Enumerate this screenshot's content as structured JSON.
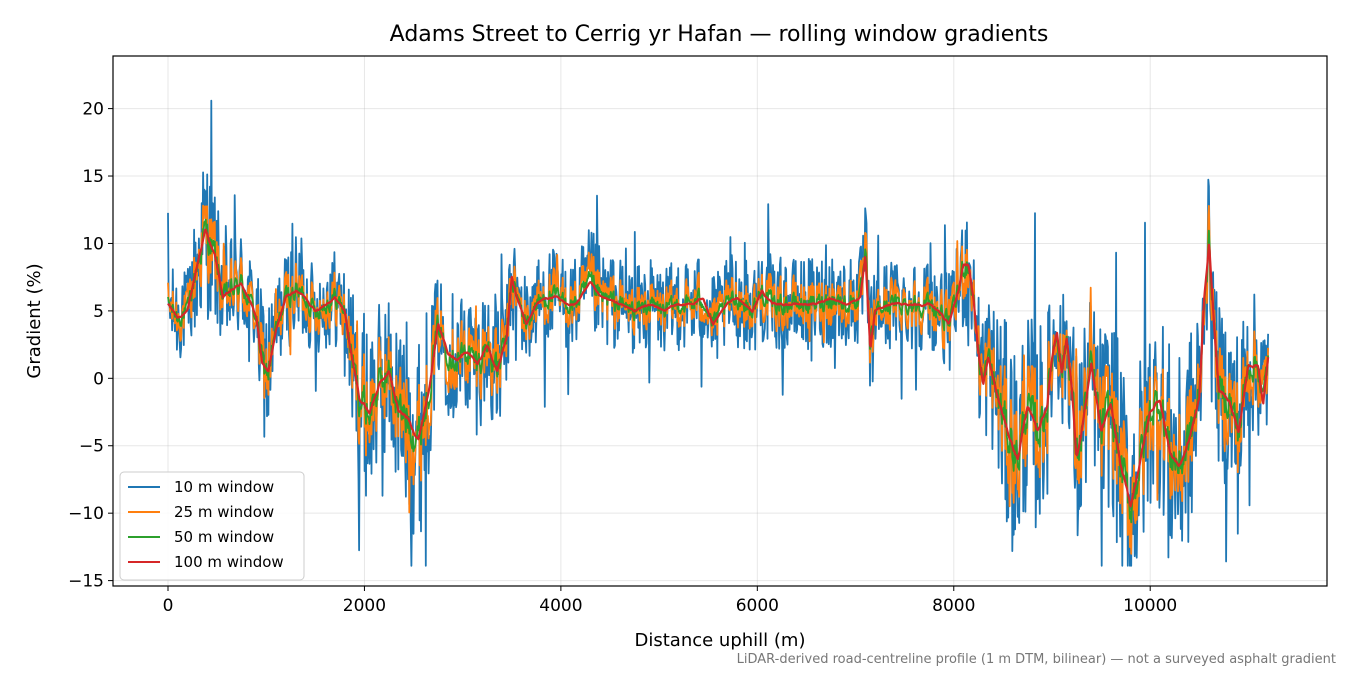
{
  "chart_data": {
    "type": "line",
    "title": "Adams Street to Cerrig yr Hafan — rolling window gradients",
    "xlabel": "Distance uphill (m)",
    "ylabel": "Gradient (%)",
    "xlim": [
      -560,
      11800
    ],
    "ylim": [
      -15.4,
      23.9
    ],
    "xticks": [
      0,
      2000,
      4000,
      6000,
      8000,
      10000
    ],
    "xtick_labels": [
      "0",
      "2000",
      "4000",
      "6000",
      "8000",
      "10000"
    ],
    "yticks": [
      -15,
      -10,
      -5,
      0,
      5,
      10,
      15,
      20
    ],
    "ytick_labels": [
      "−15",
      "−10",
      "−5",
      "0",
      "5",
      "10",
      "15",
      "20"
    ],
    "grid": true,
    "legend_position": "lower-left",
    "x_max_m": 11200,
    "profile_m": [
      [
        0,
        5.5
      ],
      [
        100,
        4.5
      ],
      [
        200,
        5.0
      ],
      [
        300,
        8.5
      ],
      [
        380,
        11.0
      ],
      [
        480,
        9.0
      ],
      [
        560,
        6.0
      ],
      [
        650,
        6.5
      ],
      [
        740,
        7.0
      ],
      [
        820,
        6.0
      ],
      [
        900,
        4.5
      ],
      [
        960,
        1.0
      ],
      [
        1020,
        0.5
      ],
      [
        1100,
        3.5
      ],
      [
        1200,
        6.0
      ],
      [
        1300,
        6.5
      ],
      [
        1400,
        6.0
      ],
      [
        1500,
        5.0
      ],
      [
        1600,
        5.5
      ],
      [
        1700,
        6.0
      ],
      [
        1800,
        5.0
      ],
      [
        1850,
        2.5
      ],
      [
        1950,
        -1.5
      ],
      [
        2050,
        -2.5
      ],
      [
        2150,
        -0.5
      ],
      [
        2250,
        0.5
      ],
      [
        2350,
        -2.5
      ],
      [
        2450,
        -3.0
      ],
      [
        2550,
        -4.5
      ],
      [
        2650,
        -1.0
      ],
      [
        2750,
        4.0
      ],
      [
        2850,
        2.0
      ],
      [
        2950,
        1.5
      ],
      [
        3050,
        2.0
      ],
      [
        3150,
        1.0
      ],
      [
        3250,
        2.5
      ],
      [
        3350,
        0.5
      ],
      [
        3450,
        3.0
      ],
      [
        3500,
        7.5
      ],
      [
        3550,
        6.0
      ],
      [
        3650,
        4.0
      ],
      [
        3750,
        5.5
      ],
      [
        3850,
        6.0
      ],
      [
        3950,
        6.0
      ],
      [
        4050,
        5.5
      ],
      [
        4150,
        5.5
      ],
      [
        4300,
        7.0
      ],
      [
        4400,
        6.0
      ],
      [
        4600,
        5.5
      ],
      [
        4750,
        5.0
      ],
      [
        4900,
        5.5
      ],
      [
        5050,
        5.0
      ],
      [
        5200,
        5.5
      ],
      [
        5350,
        5.5
      ],
      [
        5450,
        6.0
      ],
      [
        5550,
        4.0
      ],
      [
        5700,
        5.5
      ],
      [
        5800,
        6.0
      ],
      [
        5950,
        5.0
      ],
      [
        6050,
        6.5
      ],
      [
        6150,
        5.5
      ],
      [
        6300,
        5.5
      ],
      [
        6450,
        5.5
      ],
      [
        6600,
        5.5
      ],
      [
        6750,
        6.0
      ],
      [
        6900,
        5.5
      ],
      [
        7050,
        6.0
      ],
      [
        7100,
        9.0
      ],
      [
        7150,
        2.0
      ],
      [
        7200,
        5.0
      ],
      [
        7350,
        5.5
      ],
      [
        7500,
        5.5
      ],
      [
        7650,
        5.5
      ],
      [
        7750,
        5.5
      ],
      [
        7850,
        5.0
      ],
      [
        7950,
        4.0
      ],
      [
        8050,
        6.5
      ],
      [
        8100,
        8.5
      ],
      [
        8150,
        8.5
      ],
      [
        8200,
        6.0
      ],
      [
        8250,
        2.0
      ],
      [
        8300,
        -0.5
      ],
      [
        8350,
        1.5
      ],
      [
        8450,
        -1.5
      ],
      [
        8550,
        -4.0
      ],
      [
        8650,
        -6.0
      ],
      [
        8750,
        -2.0
      ],
      [
        8850,
        -4.0
      ],
      [
        8950,
        -2.0
      ],
      [
        9000,
        1.5
      ],
      [
        9050,
        3.5
      ],
      [
        9100,
        0.5
      ],
      [
        9150,
        3.0
      ],
      [
        9200,
        -0.5
      ],
      [
        9250,
        -6.0
      ],
      [
        9300,
        -4.0
      ],
      [
        9400,
        1.0
      ],
      [
        9500,
        -4.0
      ],
      [
        9600,
        -2.0
      ],
      [
        9700,
        -6.5
      ],
      [
        9800,
        -9.5
      ],
      [
        9900,
        -6.0
      ],
      [
        10000,
        -2.5
      ],
      [
        10100,
        -1.5
      ],
      [
        10200,
        -5.5
      ],
      [
        10300,
        -6.5
      ],
      [
        10400,
        -4.5
      ],
      [
        10500,
        -1.5
      ],
      [
        10550,
        6.0
      ],
      [
        10600,
        10.0
      ],
      [
        10650,
        4.0
      ],
      [
        10700,
        -1.0
      ],
      [
        10800,
        -1.5
      ],
      [
        10900,
        -4.0
      ],
      [
        11000,
        1.0
      ],
      [
        11100,
        1.0
      ],
      [
        11150,
        -2.0
      ],
      [
        11200,
        1.5
      ]
    ],
    "series": [
      {
        "name": "10 m window",
        "color": "#1f77b4",
        "noise": 3.2,
        "spikes": 0.05,
        "smooth": 0.0
      },
      {
        "name": "25 m window",
        "color": "#ff7f0e",
        "noise": 2.2,
        "spikes": 0.02,
        "smooth": 0.25
      },
      {
        "name": "50 m window",
        "color": "#2ca02c",
        "noise": 1.1,
        "spikes": 0.0,
        "smooth": 0.5
      },
      {
        "name": "100 m window",
        "color": "#d62728",
        "noise": 0.3,
        "spikes": 0.0,
        "smooth": 0.85
      }
    ]
  },
  "footnote": "LiDAR-derived road-centreline profile (1 m DTM, bilinear) — not a surveyed asphalt gradient"
}
